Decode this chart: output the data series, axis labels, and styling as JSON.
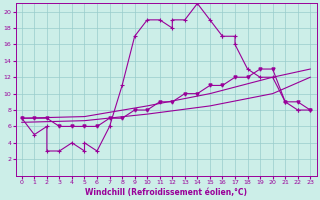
{
  "xlabel": "Windchill (Refroidissement éolien,°C)",
  "background_color": "#cceee8",
  "grid_color": "#99cccc",
  "line_color": "#990099",
  "xlim": [
    -0.5,
    23.5
  ],
  "ylim": [
    0,
    21
  ],
  "xticks": [
    0,
    1,
    2,
    3,
    4,
    5,
    6,
    7,
    8,
    9,
    10,
    11,
    12,
    13,
    14,
    15,
    16,
    17,
    18,
    19,
    20,
    21,
    22,
    23
  ],
  "yticks": [
    2,
    4,
    6,
    8,
    10,
    12,
    14,
    16,
    18,
    20
  ],
  "series1_x": [
    0,
    1,
    2,
    2,
    3,
    4,
    5,
    5,
    6,
    7,
    8,
    9,
    10,
    11,
    12,
    12,
    13,
    14,
    15,
    16,
    16,
    17,
    17,
    18,
    19,
    20,
    21,
    22,
    22,
    23
  ],
  "series1_y": [
    7,
    5,
    6,
    3,
    3,
    4,
    3,
    4,
    3,
    6,
    11,
    17,
    19,
    19,
    18,
    19,
    19,
    21,
    19,
    17,
    17,
    17,
    16,
    13,
    12,
    12,
    9,
    8,
    8,
    8
  ],
  "series2_x": [
    0,
    1,
    2,
    3,
    4,
    5,
    6,
    7,
    8,
    9,
    10,
    11,
    12,
    13,
    14,
    15,
    16,
    17,
    18,
    19,
    20,
    21,
    22,
    23
  ],
  "series2_y": [
    7,
    7,
    7,
    6,
    6,
    6,
    6,
    7,
    7,
    8,
    8,
    9,
    9,
    10,
    10,
    11,
    11,
    12,
    12,
    13,
    13,
    9,
    9,
    8
  ],
  "series3_x": [
    0,
    5,
    10,
    15,
    20,
    23
  ],
  "series3_y": [
    7,
    7.2,
    8.5,
    10,
    12,
    13
  ],
  "series4_x": [
    0,
    5,
    10,
    15,
    20,
    23
  ],
  "series4_y": [
    6.5,
    6.7,
    7.5,
    8.5,
    10,
    12
  ]
}
